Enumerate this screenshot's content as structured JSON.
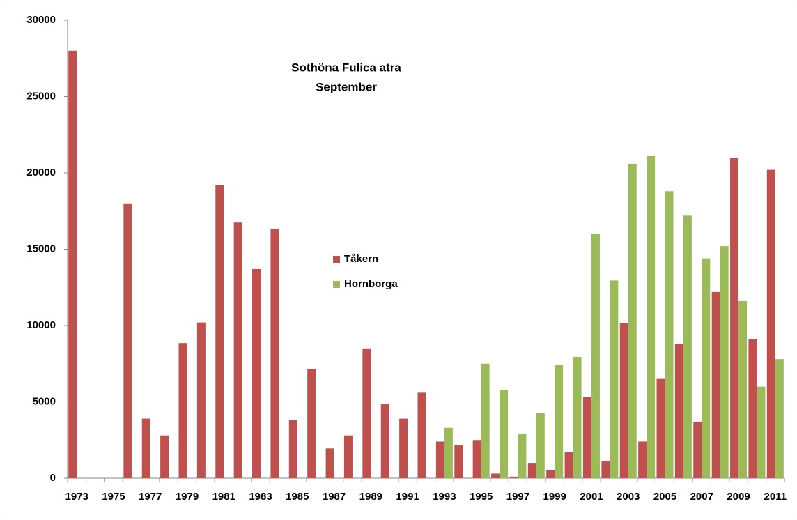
{
  "chart_data": {
    "type": "bar",
    "title": "Sothöna Fulica atra",
    "subtitle": "September",
    "categories": [
      "1973",
      null,
      "1975",
      null,
      "1977",
      null,
      "1979",
      null,
      "1981",
      null,
      "1983",
      null,
      "1985",
      null,
      "1987",
      null,
      "1989",
      null,
      "1991",
      null,
      "1993",
      null,
      "1995",
      null,
      "1997",
      null,
      "1999",
      null,
      "2001",
      null,
      "2003",
      null,
      "2005",
      null,
      "2007",
      null,
      "2009",
      null,
      "2011"
    ],
    "series": [
      {
        "name": "Tåkern",
        "color": "#c0504d",
        "values": [
          28000,
          null,
          null,
          18000,
          3900,
          2800,
          8850,
          10200,
          19200,
          16750,
          13700,
          16350,
          3800,
          7150,
          1950,
          2800,
          8500,
          4850,
          3900,
          5600,
          2400,
          2150,
          2500,
          300,
          100,
          1000,
          550,
          1700,
          5300,
          1100,
          10150,
          2400,
          6500,
          8800,
          3700,
          12200,
          21000,
          9100,
          20200
        ]
      },
      {
        "name": "Hornborga",
        "color": "#9bbb59",
        "values": [
          null,
          null,
          null,
          null,
          null,
          null,
          null,
          null,
          null,
          null,
          null,
          null,
          null,
          null,
          null,
          null,
          null,
          null,
          null,
          null,
          3300,
          null,
          7500,
          5800,
          2900,
          4250,
          7400,
          7950,
          16000,
          12950,
          20600,
          21100,
          18800,
          17200,
          14400,
          15200,
          11600,
          6000,
          7800
        ]
      }
    ],
    "ylim": [
      0,
      30000
    ],
    "yticks": [
      0,
      5000,
      10000,
      15000,
      20000,
      25000,
      30000
    ],
    "grid": false,
    "legend": "center"
  }
}
